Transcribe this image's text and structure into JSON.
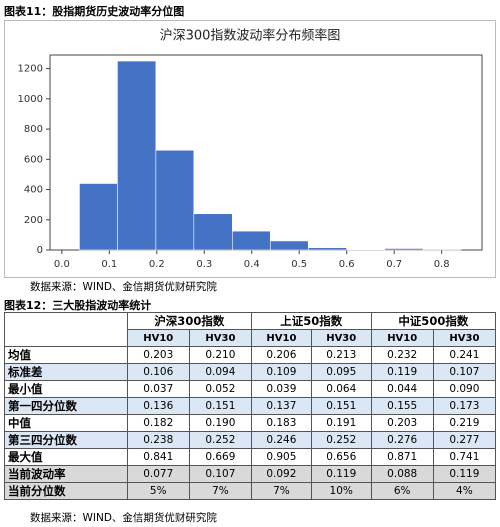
{
  "figure11_title": "图表11：股指期货历史波动率分位图",
  "chart_data": {
    "type": "histogram",
    "title": "沪深300指数波动率分布频率图",
    "bins": [
      0.037,
      0.117,
      0.198,
      0.278,
      0.359,
      0.439,
      0.519,
      0.6,
      0.68,
      0.761,
      0.841
    ],
    "values": [
      440,
      1250,
      660,
      240,
      125,
      60,
      15,
      3,
      10,
      5
    ],
    "color": "#4472c4",
    "xlim": [
      -0.025,
      0.885
    ],
    "xticks": [
      {
        "value": 0,
        "label": "0.0"
      },
      0.1,
      0.2,
      0.3,
      0.4,
      0.5,
      0.6,
      0.7,
      0.8
    ],
    "ylim": [
      0,
      1290
    ],
    "yticks": [
      0,
      200,
      400,
      600,
      800,
      1000,
      1200
    ]
  },
  "source1": "数据来源：WIND、金信期货优财研究院",
  "figure12_title": "图表12：三大股指波动率统计",
  "table": {
    "groups": [
      "沪深300指数",
      "上证50指数",
      "中证500指数"
    ],
    "subheaders": [
      "HV10",
      "HV30",
      "HV10",
      "HV30",
      "HV10",
      "HV30"
    ],
    "rows": [
      {
        "label": "均值",
        "cells": [
          "0.203",
          "0.210",
          "0.206",
          "0.213",
          "0.232",
          "0.241"
        ]
      },
      {
        "label": "标准差",
        "cells": [
          "0.106",
          "0.094",
          "0.109",
          "0.095",
          "0.119",
          "0.107"
        ]
      },
      {
        "label": "最小值",
        "cells": [
          "0.037",
          "0.052",
          "0.039",
          "0.064",
          "0.044",
          "0.090"
        ]
      },
      {
        "label": "第一四分位数",
        "cells": [
          "0.136",
          "0.151",
          "0.137",
          "0.151",
          "0.155",
          "0.173"
        ]
      },
      {
        "label": "中值",
        "cells": [
          "0.182",
          "0.190",
          "0.183",
          "0.191",
          "0.203",
          "0.219"
        ]
      },
      {
        "label": "第三四分位数",
        "cells": [
          "0.238",
          "0.252",
          "0.246",
          "0.252",
          "0.276",
          "0.277"
        ]
      },
      {
        "label": "最大值",
        "cells": [
          "0.841",
          "0.669",
          "0.905",
          "0.656",
          "0.871",
          "0.741"
        ]
      },
      {
        "label": "当前波动率",
        "cells": [
          "0.077",
          "0.107",
          "0.092",
          "0.119",
          "0.088",
          "0.119"
        ]
      },
      {
        "label": "当前分位数",
        "cells": [
          "5%",
          "7%",
          "7%",
          "10%",
          "6%",
          "4%"
        ]
      }
    ]
  },
  "source2": "数据来源：WIND、金信期货优财研究院"
}
